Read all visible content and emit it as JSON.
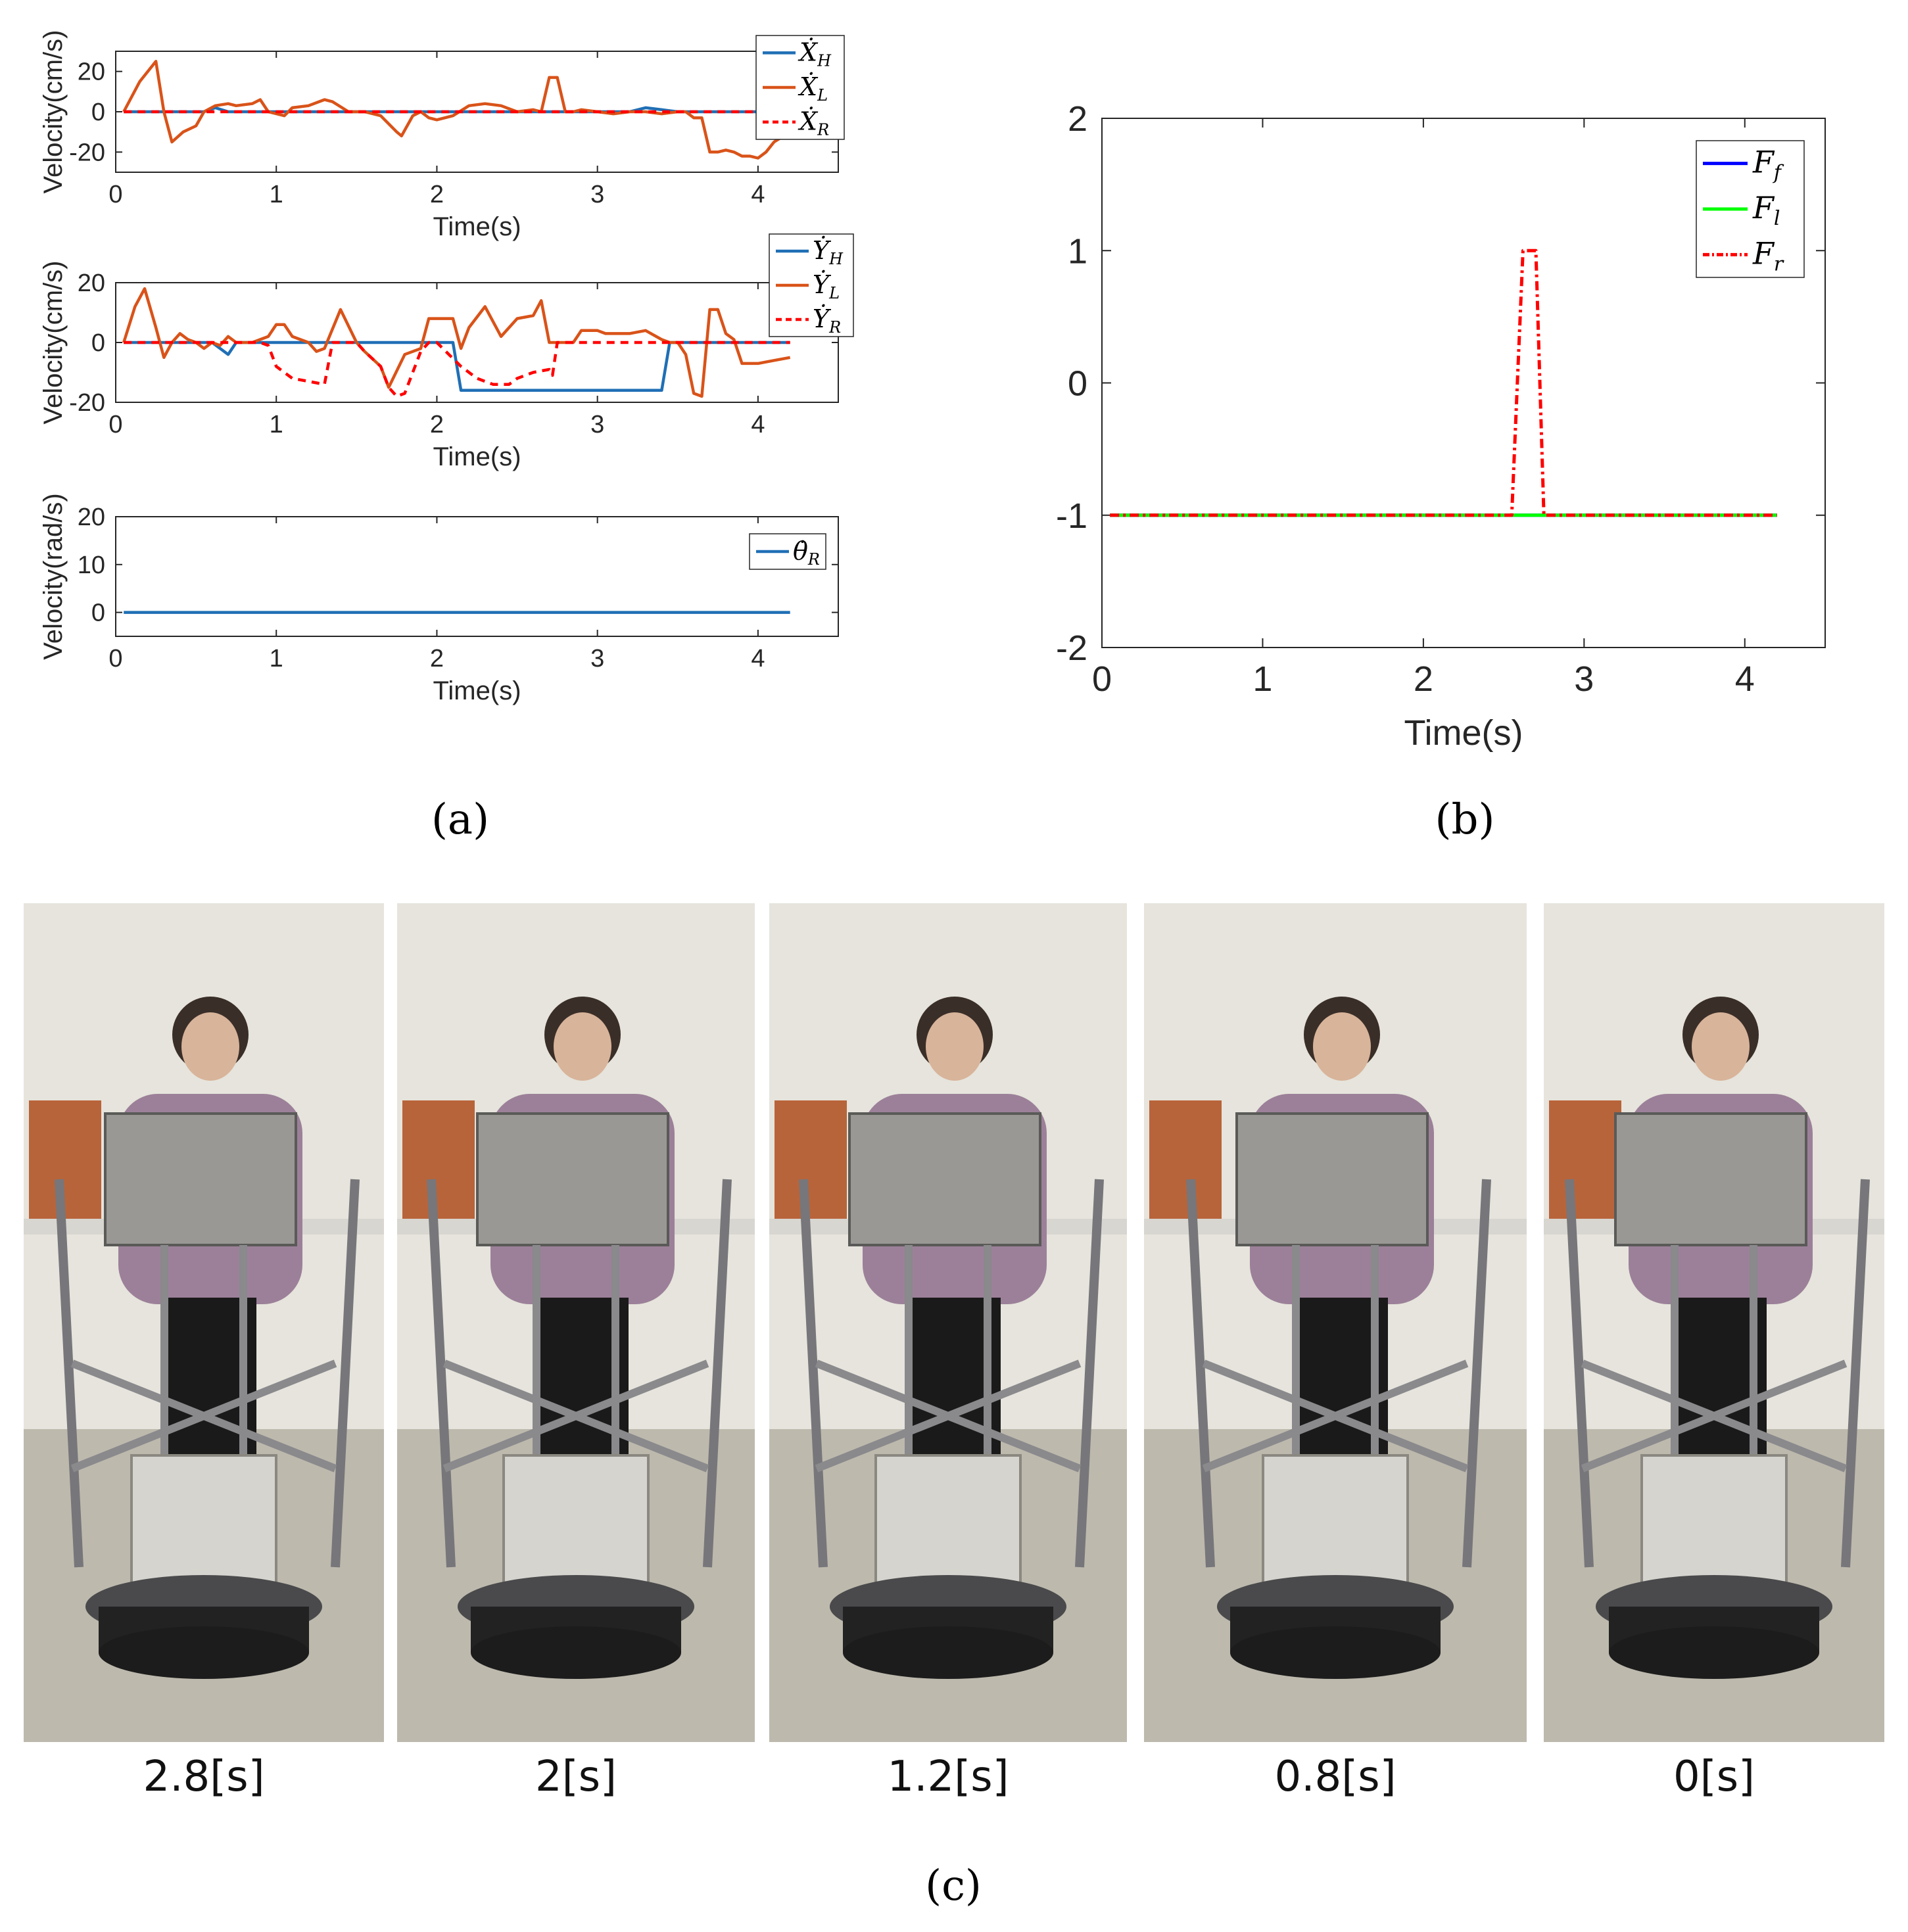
{
  "panel_labels": {
    "a": "(a)",
    "b": "(b)",
    "c": "(c)"
  },
  "colors": {
    "blue_a": "#1f6fb5",
    "orange_a": "#d95319",
    "red_dash": "#ff0000",
    "blue_b": "#0000ff",
    "green_b": "#00ff00"
  },
  "chart_data": [
    {
      "id": "a1",
      "type": "line",
      "xlabel": "Time(s)",
      "ylabel": "Velocity(cm/s)",
      "xlim": [
        0,
        4.5
      ],
      "ylim": [
        -30,
        30
      ],
      "xticks": [
        "0",
        "1",
        "2",
        "3",
        "4"
      ],
      "yticks": [
        "20",
        "0",
        "-20"
      ],
      "ytick_values": [
        20,
        0,
        -20
      ],
      "legend_position": "top-right",
      "series": [
        {
          "name": "Ẋ_H",
          "legend_main": "Ẋ",
          "legend_sub": "H",
          "color": "#1f6fb5",
          "dash": "",
          "x": [
            0.05,
            0.55,
            0.62,
            0.7,
            1.0,
            2.0,
            3.2,
            3.3,
            3.4,
            3.5,
            4.2
          ],
          "y": [
            0,
            0,
            2,
            0,
            0,
            0,
            0,
            2,
            1,
            0,
            0
          ]
        },
        {
          "name": "Ẋ_L",
          "legend_main": "Ẋ",
          "legend_sub": "L",
          "color": "#d95319",
          "dash": "",
          "x": [
            0.05,
            0.15,
            0.25,
            0.3,
            0.35,
            0.42,
            0.5,
            0.55,
            0.62,
            0.7,
            0.75,
            0.85,
            0.9,
            0.95,
            1.05,
            1.1,
            1.2,
            1.3,
            1.35,
            1.45,
            1.55,
            1.65,
            1.75,
            1.78,
            1.85,
            1.9,
            1.95,
            2.0,
            2.1,
            2.2,
            2.3,
            2.4,
            2.5,
            2.6,
            2.65,
            2.7,
            2.75,
            2.8,
            2.85,
            2.9,
            3.0,
            3.1,
            3.2,
            3.3,
            3.4,
            3.5,
            3.55,
            3.6,
            3.65,
            3.7,
            3.75,
            3.8,
            3.85,
            3.9,
            3.95,
            4.0,
            4.05,
            4.1,
            4.2
          ],
          "y": [
            0,
            15,
            25,
            0,
            -15,
            -10,
            -7,
            0,
            3,
            4,
            3,
            4,
            6,
            0,
            -2,
            2,
            3,
            6,
            5,
            0,
            0,
            -2,
            -10,
            -12,
            -2,
            0,
            -3,
            -4,
            -2,
            3,
            4,
            3,
            0,
            1,
            0,
            17,
            17,
            0,
            0,
            1,
            0,
            -1,
            0,
            0,
            -1,
            0,
            0,
            -3,
            -3,
            -20,
            -20,
            -19,
            -20,
            -22,
            -22,
            -23,
            -20,
            -15,
            -10
          ]
        },
        {
          "name": "Ẋ_R",
          "legend_main": "Ẋ",
          "legend_sub": "R",
          "color": "#ff0000",
          "dash": "12,9",
          "x": [
            0.05,
            4.2
          ],
          "y": [
            0,
            0
          ]
        }
      ]
    },
    {
      "id": "a2",
      "type": "line",
      "xlabel": "Time(s)",
      "ylabel": "Velocity(cm/s)",
      "xlim": [
        0,
        4.5
      ],
      "ylim": [
        -20,
        20
      ],
      "xticks": [
        "0",
        "1",
        "2",
        "3",
        "4"
      ],
      "yticks": [
        "20",
        "0",
        "-20"
      ],
      "ytick_values": [
        20,
        0,
        -20
      ],
      "legend_position": "top-right",
      "series": [
        {
          "name": "Ẏ_H",
          "legend_main": "Ẏ",
          "legend_sub": "H",
          "color": "#1f6fb5",
          "dash": "",
          "x": [
            0.05,
            0.6,
            0.7,
            0.75,
            2.1,
            2.15,
            3.4,
            3.45,
            4.2
          ],
          "y": [
            0,
            0,
            -4,
            0,
            0,
            -16,
            -16,
            0,
            0
          ]
        },
        {
          "name": "Ẏ_L",
          "legend_main": "Ẏ",
          "legend_sub": "L",
          "color": "#d95319",
          "dash": "",
          "x": [
            0.05,
            0.12,
            0.18,
            0.25,
            0.3,
            0.35,
            0.4,
            0.45,
            0.5,
            0.55,
            0.6,
            0.65,
            0.7,
            0.75,
            0.85,
            0.95,
            1.0,
            1.05,
            1.1,
            1.2,
            1.25,
            1.3,
            1.4,
            1.5,
            1.55,
            1.65,
            1.7,
            1.8,
            1.9,
            1.95,
            2.0,
            2.1,
            2.15,
            2.2,
            2.3,
            2.4,
            2.5,
            2.6,
            2.65,
            2.7,
            2.75,
            2.85,
            2.9,
            3.0,
            3.05,
            3.1,
            3.2,
            3.3,
            3.4,
            3.45,
            3.5,
            3.55,
            3.6,
            3.65,
            3.7,
            3.75,
            3.8,
            3.85,
            3.9,
            3.95,
            4.0,
            4.1,
            4.2
          ],
          "y": [
            0,
            12,
            18,
            5,
            -5,
            0,
            3,
            1,
            0,
            -2,
            0,
            -1,
            2,
            0,
            0,
            2,
            6,
            6,
            2,
            0,
            -3,
            -2,
            11,
            0,
            -3,
            -8,
            -15,
            -4,
            -2,
            8,
            8,
            8,
            -2,
            5,
            12,
            2,
            8,
            9,
            14,
            0,
            0,
            0,
            4,
            4,
            3,
            3,
            3,
            4,
            1,
            0,
            0,
            -4,
            -17,
            -18,
            11,
            11,
            3,
            1,
            -7,
            -7,
            -7,
            -6,
            -5
          ]
        },
        {
          "name": "Ẏ_R",
          "legend_main": "Ẏ",
          "legend_sub": "R",
          "color": "#ff0000",
          "dash": "12,9",
          "x": [
            0.05,
            0.9,
            0.95,
            1.0,
            1.05,
            1.1,
            1.2,
            1.3,
            1.35,
            1.5,
            1.55,
            1.65,
            1.7,
            1.75,
            1.8,
            1.9,
            1.95,
            2.0,
            2.15,
            2.25,
            2.35,
            2.45,
            2.5,
            2.6,
            2.7,
            2.72,
            2.75,
            4.2
          ],
          "y": [
            0,
            0,
            -1,
            -8,
            -10,
            -12,
            -13,
            -14,
            0,
            0,
            -3,
            -8,
            -15,
            -18,
            -17,
            -3,
            0,
            0,
            -8,
            -12,
            -14,
            -14,
            -12,
            -10,
            -9,
            -11,
            0,
            0
          ]
        }
      ]
    },
    {
      "id": "a3",
      "type": "line",
      "xlabel": "Time(s)",
      "ylabel": "Velocity(rad/s)",
      "xlim": [
        0,
        4.5
      ],
      "ylim": [
        -5,
        20
      ],
      "xticks": [
        "0",
        "1",
        "2",
        "3",
        "4"
      ],
      "yticks": [
        "20",
        "10",
        "0"
      ],
      "ytick_values": [
        20,
        10,
        0
      ],
      "legend_position": "top-right",
      "series": [
        {
          "name": "θ̇_R",
          "legend_main": "θ̇",
          "legend_sub": "R",
          "color": "#1f6fb5",
          "dash": "",
          "x": [
            0.05,
            4.2
          ],
          "y": [
            0,
            0
          ]
        }
      ]
    },
    {
      "id": "b",
      "type": "line",
      "xlabel": "Time(s)",
      "ylabel": "",
      "xlim": [
        0,
        4.5
      ],
      "ylim": [
        -2,
        2
      ],
      "xticks": [
        "0",
        "1",
        "2",
        "3",
        "4"
      ],
      "yticks": [
        "2",
        "1",
        "0",
        "-1",
        "-2"
      ],
      "ytick_values": [
        2,
        1,
        0,
        -1,
        -2
      ],
      "legend_position": "top-right",
      "series": [
        {
          "name": "F_f",
          "legend_main": "F",
          "legend_sub": "f",
          "color": "#0000ff",
          "dash": "",
          "x": [
            0.05,
            4.2
          ],
          "y": [
            -1,
            -1
          ]
        },
        {
          "name": "F_l",
          "legend_main": "F",
          "legend_sub": "l",
          "color": "#00ff00",
          "dash": "",
          "x": [
            0.05,
            4.2
          ],
          "y": [
            -1,
            -1
          ]
        },
        {
          "name": "F_r",
          "legend_main": "F",
          "legend_sub": "r",
          "color": "#ff0000",
          "dash": "14,6,4,6",
          "x": [
            0.05,
            2.55,
            2.62,
            2.7,
            2.75,
            4.2
          ],
          "y": [
            -1,
            -1,
            1,
            1,
            -1,
            -1
          ]
        }
      ]
    }
  ],
  "photos": [
    {
      "time_label": "2.8[s]"
    },
    {
      "time_label": "2[s]"
    },
    {
      "time_label": "1.2[s]"
    },
    {
      "time_label": "0.8[s]"
    },
    {
      "time_label": "0[s]"
    }
  ]
}
